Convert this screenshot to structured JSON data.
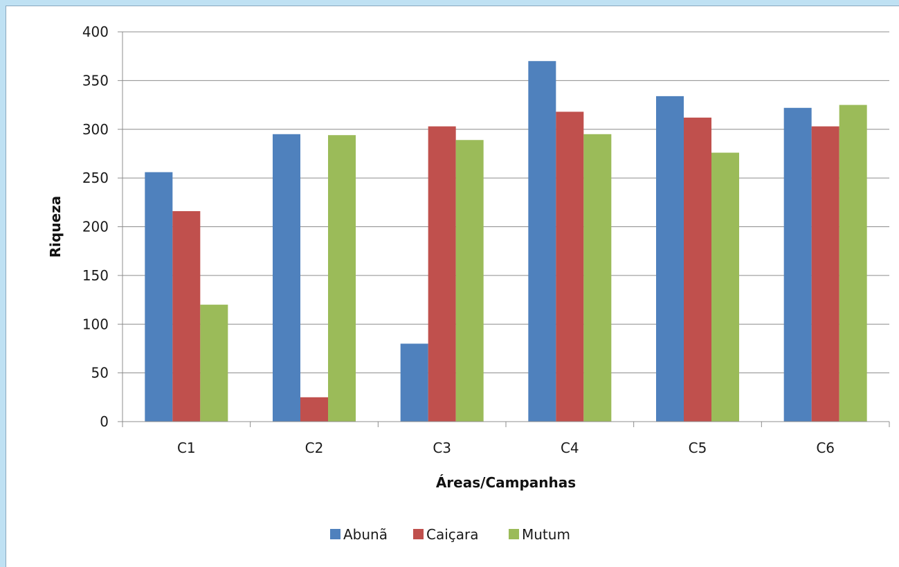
{
  "chart_data": {
    "type": "bar",
    "title": "",
    "xlabel": "Áreas/Campanhas",
    "ylabel": "Riqueza",
    "categories": [
      "C1",
      "C2",
      "C3",
      "C4",
      "C5",
      "C6"
    ],
    "ylim": [
      0,
      400
    ],
    "yticks": [
      0,
      50,
      100,
      150,
      200,
      250,
      300,
      350,
      400
    ],
    "grid": true,
    "legend_position": "bottom",
    "series": [
      {
        "name": "Abunã",
        "color": "#4f81bd",
        "values": [
          256,
          295,
          80,
          370,
          334,
          322
        ]
      },
      {
        "name": "Caiçara",
        "color": "#c0504d",
        "values": [
          216,
          25,
          303,
          318,
          312,
          303
        ]
      },
      {
        "name": "Mutum",
        "color": "#9bbb59",
        "values": [
          120,
          294,
          289,
          295,
          276,
          325
        ]
      }
    ]
  }
}
